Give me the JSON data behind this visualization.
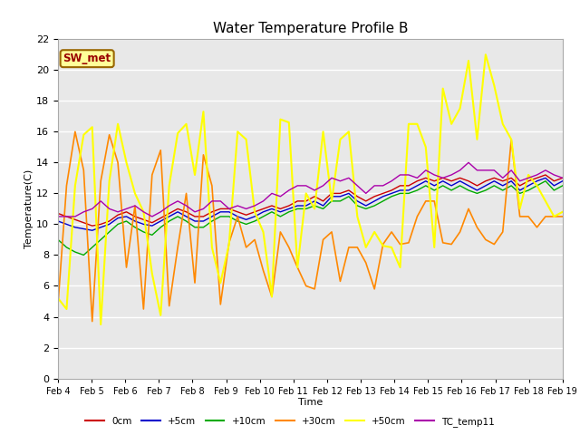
{
  "title": "Water Temperature Profile B",
  "xlabel": "Time",
  "ylabel": "Temperature(C)",
  "annotation": "SW_met",
  "ylim": [
    0,
    22
  ],
  "yticks": [
    0,
    2,
    4,
    6,
    8,
    10,
    12,
    14,
    16,
    18,
    20,
    22
  ],
  "plot_bg_color": "#e8e8e8",
  "series": {
    "0cm": {
      "color": "#cc0000",
      "lw": 1.0
    },
    "+5cm": {
      "color": "#0000cc",
      "lw": 1.0
    },
    "+10cm": {
      "color": "#00aa00",
      "lw": 1.0
    },
    "+30cm": {
      "color": "#ff8800",
      "lw": 1.2
    },
    "+50cm": {
      "color": "#ffff00",
      "lw": 1.5
    },
    "TC_temp11": {
      "color": "#aa00aa",
      "lw": 1.0
    }
  },
  "xtick_labels": [
    "Feb 4",
    "Feb 5",
    "Feb 6",
    "Feb 7",
    "Feb 8",
    "Feb 9",
    "Feb 10",
    "Feb 11",
    "Feb 12",
    "Feb 13",
    "Feb 14",
    "Feb 15",
    "Feb 16",
    "Feb 17",
    "Feb 18",
    "Feb 19"
  ],
  "data_0cm": [
    10.7,
    10.5,
    10.3,
    10.1,
    9.9,
    10.0,
    10.2,
    10.6,
    10.8,
    10.5,
    10.3,
    10.1,
    10.4,
    10.7,
    11.0,
    10.8,
    10.5,
    10.5,
    10.8,
    11.0,
    11.0,
    10.8,
    10.6,
    10.8,
    11.0,
    11.2,
    11.0,
    11.2,
    11.5,
    11.5,
    11.8,
    11.5,
    12.0,
    12.0,
    12.2,
    11.8,
    11.5,
    11.8,
    12.0,
    12.2,
    12.5,
    12.5,
    12.8,
    13.0,
    12.8,
    13.0,
    12.8,
    13.0,
    12.8,
    12.5,
    12.8,
    13.0,
    12.8,
    13.0,
    12.5,
    12.8,
    13.0,
    13.2,
    12.8,
    13.0
  ],
  "data_5cm": [
    10.2,
    10.0,
    9.8,
    9.7,
    9.6,
    9.8,
    10.0,
    10.4,
    10.5,
    10.2,
    10.0,
    9.9,
    10.2,
    10.5,
    10.8,
    10.5,
    10.2,
    10.2,
    10.5,
    10.8,
    10.8,
    10.5,
    10.3,
    10.5,
    10.8,
    11.0,
    10.8,
    11.0,
    11.2,
    11.2,
    11.5,
    11.2,
    11.8,
    11.8,
    12.0,
    11.5,
    11.2,
    11.5,
    11.8,
    12.0,
    12.2,
    12.2,
    12.5,
    12.8,
    12.5,
    12.8,
    12.5,
    12.8,
    12.5,
    12.2,
    12.5,
    12.8,
    12.5,
    12.8,
    12.2,
    12.5,
    12.8,
    13.0,
    12.5,
    12.8
  ],
  "data_10cm": [
    9.0,
    8.5,
    8.2,
    8.0,
    8.5,
    9.0,
    9.5,
    10.0,
    10.2,
    9.8,
    9.5,
    9.3,
    9.8,
    10.2,
    10.5,
    10.2,
    9.8,
    9.8,
    10.2,
    10.5,
    10.5,
    10.2,
    10.0,
    10.2,
    10.5,
    10.8,
    10.5,
    10.8,
    11.0,
    11.0,
    11.2,
    11.0,
    11.5,
    11.5,
    11.8,
    11.2,
    11.0,
    11.2,
    11.5,
    11.8,
    12.0,
    12.0,
    12.2,
    12.5,
    12.2,
    12.5,
    12.2,
    12.5,
    12.2,
    12.0,
    12.2,
    12.5,
    12.2,
    12.5,
    12.0,
    12.2,
    12.5,
    12.8,
    12.2,
    12.5
  ],
  "data_30cm": [
    4.8,
    12.5,
    16.0,
    13.5,
    3.7,
    12.8,
    15.8,
    14.0,
    7.2,
    11.2,
    4.5,
    13.2,
    14.8,
    4.7,
    8.5,
    12.0,
    6.2,
    14.5,
    12.5,
    4.8,
    8.8,
    10.5,
    8.5,
    9.0,
    7.0,
    5.3,
    9.5,
    8.5,
    7.2,
    6.0,
    5.8,
    9.0,
    9.5,
    6.3,
    8.5,
    8.5,
    7.5,
    5.8,
    8.7,
    9.5,
    8.7,
    8.8,
    10.5,
    11.5,
    11.5,
    8.8,
    8.7,
    9.5,
    11.0,
    9.8,
    9.0,
    8.7,
    9.5,
    15.5,
    10.5,
    10.5,
    9.8,
    10.5,
    10.5,
    10.5
  ],
  "data_50cm": [
    5.2,
    4.5,
    12.5,
    15.8,
    16.3,
    3.5,
    12.8,
    16.5,
    14.0,
    12.0,
    10.8,
    6.8,
    4.1,
    12.5,
    15.9,
    16.5,
    13.2,
    17.3,
    8.5,
    6.2,
    8.7,
    16.0,
    15.5,
    10.8,
    9.5,
    5.3,
    16.8,
    16.6,
    7.2,
    12.0,
    11.0,
    16.0,
    11.5,
    15.5,
    16.0,
    10.5,
    8.5,
    9.5,
    8.6,
    8.5,
    7.2,
    16.5,
    16.5,
    15.0,
    8.5,
    18.8,
    16.5,
    17.5,
    20.6,
    15.5,
    21.0,
    19.0,
    16.5,
    15.5,
    11.0,
    13.2,
    12.5,
    11.5,
    10.5,
    10.8
  ],
  "data_tc": [
    10.5,
    10.5,
    10.5,
    10.8,
    11.0,
    11.5,
    11.0,
    10.8,
    11.0,
    11.2,
    10.8,
    10.5,
    10.8,
    11.2,
    11.5,
    11.2,
    10.8,
    11.0,
    11.5,
    11.5,
    11.0,
    11.2,
    11.0,
    11.2,
    11.5,
    12.0,
    11.8,
    12.2,
    12.5,
    12.5,
    12.2,
    12.5,
    13.0,
    12.8,
    13.0,
    12.5,
    12.0,
    12.5,
    12.5,
    12.8,
    13.2,
    13.2,
    13.0,
    13.5,
    13.2,
    13.0,
    13.2,
    13.5,
    14.0,
    13.5,
    13.5,
    13.5,
    13.0,
    13.5,
    12.8,
    13.0,
    13.2,
    13.5,
    13.2,
    13.0
  ]
}
